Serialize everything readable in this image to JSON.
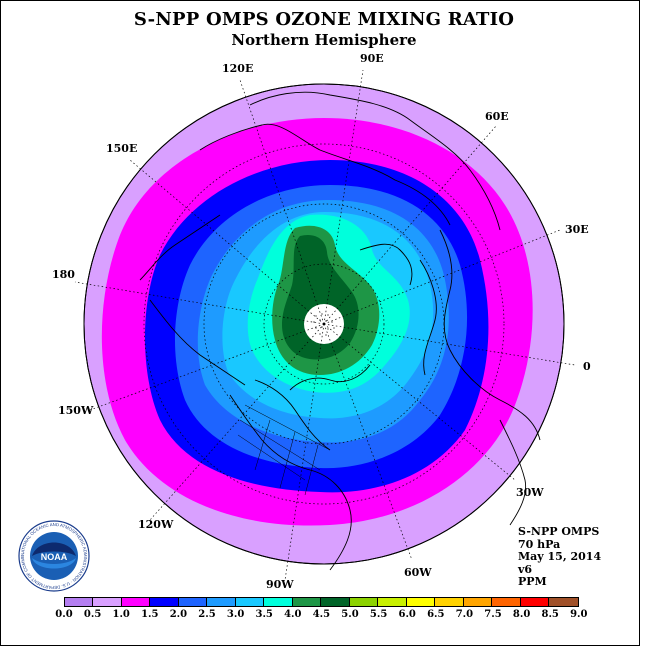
{
  "header": {
    "title": "S-NPP OMPS OZONE MIXING RATIO",
    "subtitle": "Northern Hemisphere"
  },
  "map": {
    "projection": "north-polar-stereographic",
    "longitude_labels": [
      "90E",
      "60E",
      "30E",
      "0",
      "30W",
      "60W",
      "90W",
      "120W",
      "150W",
      "180",
      "150E",
      "120E"
    ],
    "contour_colors": {
      "outer": "#d9a0ff",
      "band_1_0": "#ff00ff",
      "band_1_5": "#0000ff",
      "band_2_0": "#1e64ff",
      "band_2_5": "#1e9bff",
      "band_3_0": "#19c8ff",
      "band_3_5": "#00ffdc",
      "band_4_0": "#1e9646",
      "band_4_5": "#006428",
      "polar_cap": "#ffffff"
    }
  },
  "info": {
    "instrument": "S-NPP OMPS",
    "level": "70 hPa",
    "date": "May 15, 2014",
    "version": "v6",
    "units": "PPM"
  },
  "colorbar": {
    "colors": [
      "#b47ef0",
      "#d9a0ff",
      "#ff00ff",
      "#0000ff",
      "#1e64ff",
      "#1e9bff",
      "#19c8ff",
      "#00ffdc",
      "#1e9646",
      "#006428",
      "#8cd200",
      "#c8f000",
      "#ffff00",
      "#ffd200",
      "#ffa500",
      "#ff6400",
      "#ff0000",
      "#a05028"
    ],
    "ticks": [
      "0.0",
      "0.5",
      "1.0",
      "1.5",
      "2.0",
      "2.5",
      "3.0",
      "3.5",
      "4.0",
      "4.5",
      "5.0",
      "5.5",
      "6.0",
      "6.5",
      "7.0",
      "7.5",
      "8.0",
      "8.5",
      "9.0"
    ]
  },
  "logo": {
    "text": "NOAA",
    "ring_text": "NATIONAL OCEANIC AND ATMOSPHERIC ADMINISTRATION · U.S. DEPARTMENT OF COMMERCE"
  }
}
